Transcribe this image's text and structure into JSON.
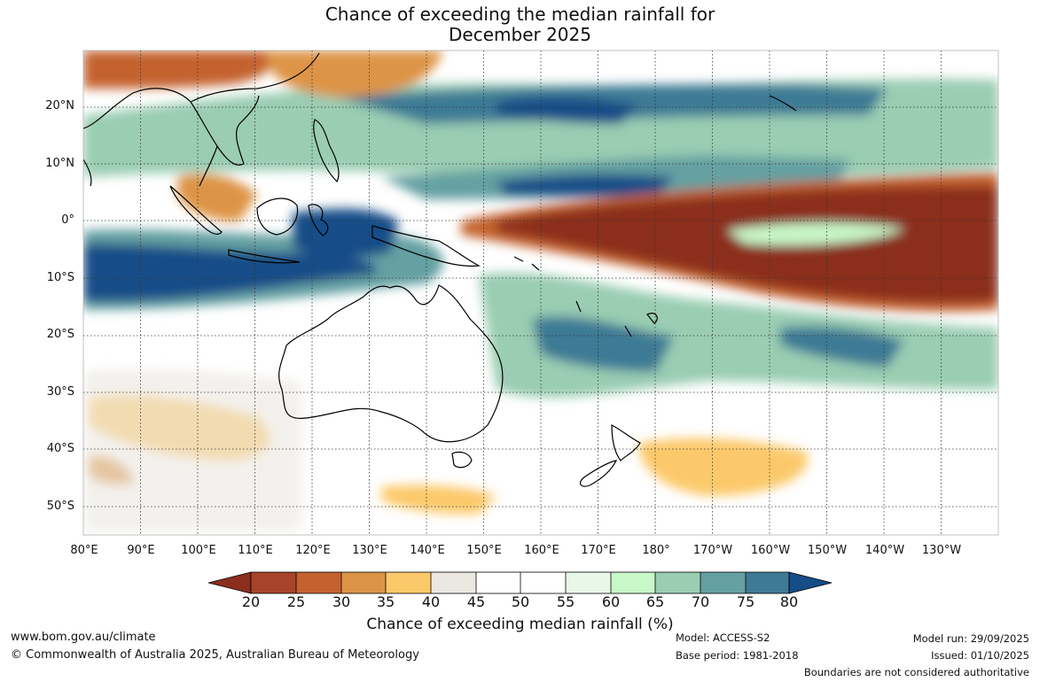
{
  "title": {
    "line1": "Chance of exceeding the median rainfall for",
    "line2": "December 2025"
  },
  "map": {
    "latitude_labels": [
      "20°N",
      "10°N",
      "0°",
      "10°S",
      "20°S",
      "30°S",
      "40°S",
      "50°S"
    ],
    "longitude_labels": [
      "80°E",
      "90°E",
      "100°E",
      "110°E",
      "120°E",
      "130°E",
      "140°E",
      "150°E",
      "160°E",
      "170°E",
      "180°",
      "170°W",
      "160°W",
      "150°W",
      "140°W",
      "130°W"
    ],
    "lon_range": [
      80,
      240
    ],
    "lat_range": [
      -55,
      30
    ]
  },
  "legend": {
    "title": "Chance of exceeding median rainfall (%)",
    "tick_labels": [
      "20",
      "25",
      "30",
      "35",
      "40",
      "45",
      "50",
      "55",
      "60",
      "65",
      "70",
      "75",
      "80"
    ],
    "colors": [
      "#8b2e1e",
      "#a8442a",
      "#c4622f",
      "#dd9446",
      "#fcc96a",
      "#ebe8e1",
      "#ffffff",
      "#ffffff",
      "#e8f7e8",
      "#c8f7c8",
      "#9acdb2",
      "#65a0a2",
      "#3e7a95",
      "#154d88"
    ]
  },
  "footer": {
    "website": "www.bom.gov.au/climate",
    "copyright": "© Commonwealth of Australia 2025, Australian Bureau of Meteorology",
    "model": "Model: ACCESS-S2",
    "base_period": "Base period: 1981-2018",
    "model_run": "Model run: 29/09/2025",
    "issued": "Issued: 01/10/2025",
    "disclaimer": "Boundaries are not considered authoritative"
  }
}
